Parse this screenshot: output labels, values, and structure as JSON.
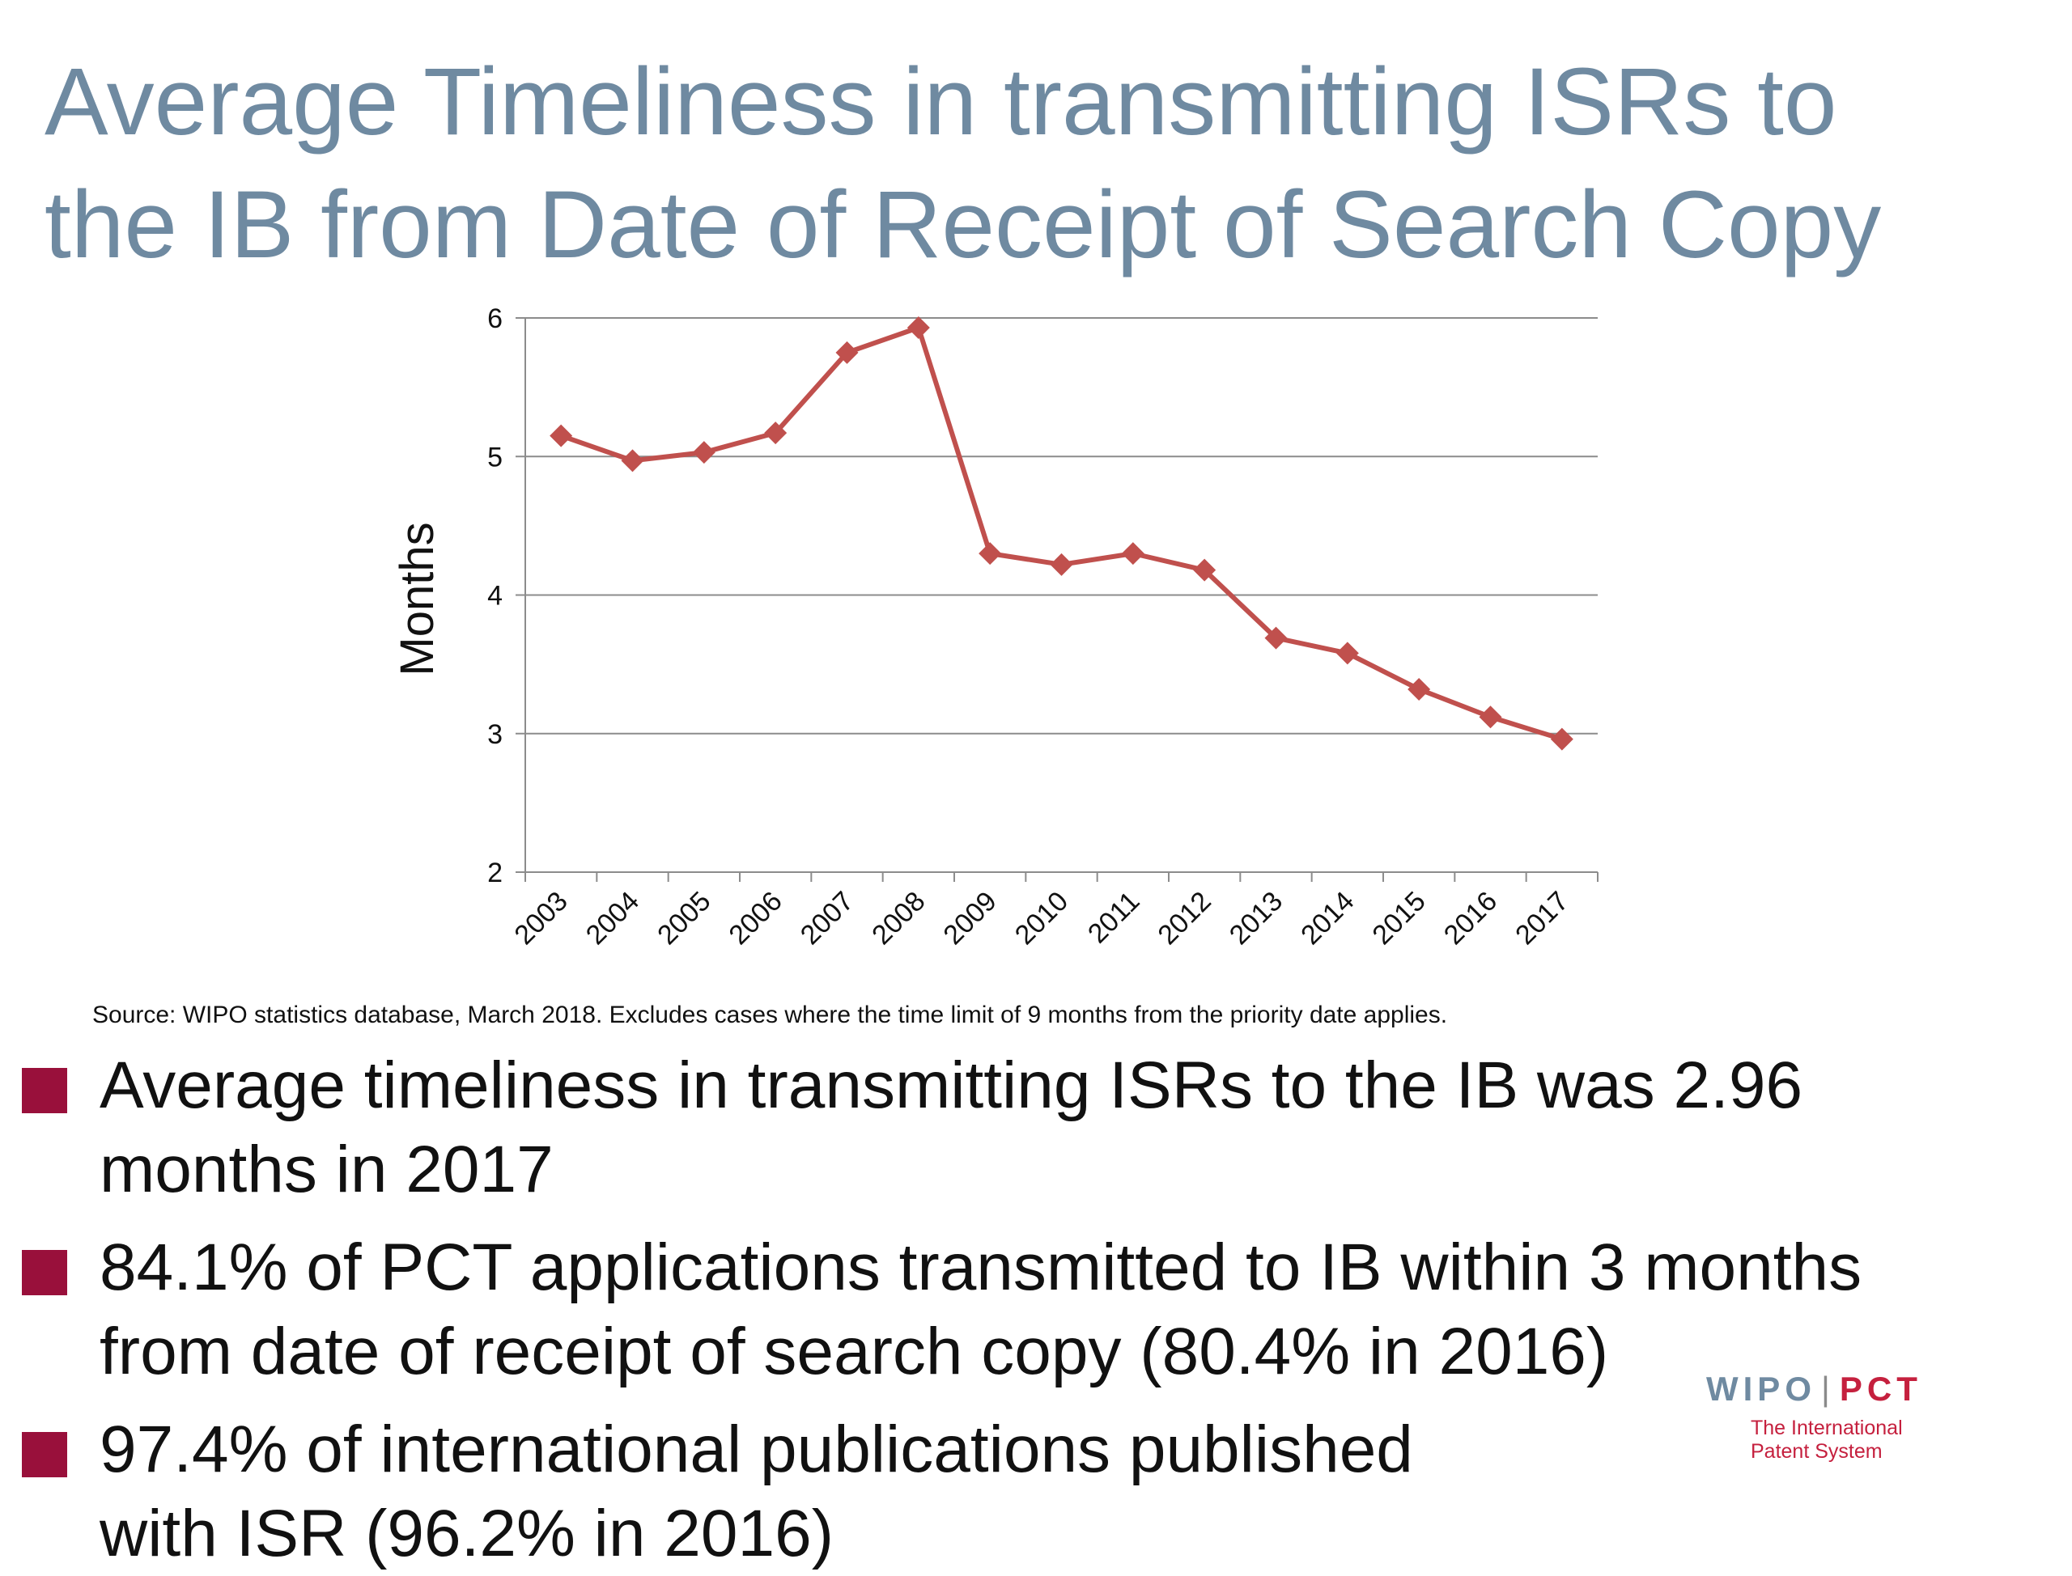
{
  "title": {
    "line1": "Average Timeliness in transmitting ISRs to",
    "line2": "the IB from Date of Receipt of Search Copy"
  },
  "chart_data": {
    "type": "line",
    "ylabel": "Months",
    "xlabel": "",
    "categories": [
      "2003",
      "2004",
      "2005",
      "2006",
      "2007",
      "2008",
      "2009",
      "2010",
      "2011",
      "2012",
      "2013",
      "2014",
      "2015",
      "2016",
      "2017"
    ],
    "series": [
      {
        "values": [
          5.15,
          4.97,
          5.03,
          5.17,
          5.75,
          5.93,
          4.3,
          4.22,
          4.3,
          4.18,
          3.69,
          3.58,
          3.32,
          3.12,
          2.96
        ]
      }
    ],
    "ylim": [
      2,
      6
    ],
    "yticks": [
      "2",
      "3",
      "4",
      "5",
      "6"
    ],
    "grid": true,
    "legend": "none",
    "colors": {
      "line": "#c0504d",
      "grid": "#8c8c8c",
      "axis": "#8c8c8c"
    }
  },
  "source_note": "Source: WIPO statistics database, March 2018.  Excludes cases where the time limit of 9 months from the priority date applies.",
  "bullets": [
    {
      "lines": [
        "Average timeliness in transmitting ISRs to the IB was 2.96",
        "months in 2017"
      ]
    },
    {
      "lines": [
        "84.1% of PCT applications transmitted to IB within 3 months",
        "from date of receipt of search copy (80.4% in 2016)"
      ]
    },
    {
      "lines": [
        "97.4% of international publications published",
        "with ISR (96.2% in 2016)"
      ]
    }
  ],
  "logo": {
    "wipo": "WIPO",
    "separator": "|",
    "pct": "PCT",
    "sub_line1": "The International",
    "sub_line2": "Patent System"
  },
  "colors": {
    "title": "#6f8aa1",
    "bullet_mark": "#99103b",
    "logo_blue": "#6f8aa1",
    "logo_red": "#c5203e"
  }
}
